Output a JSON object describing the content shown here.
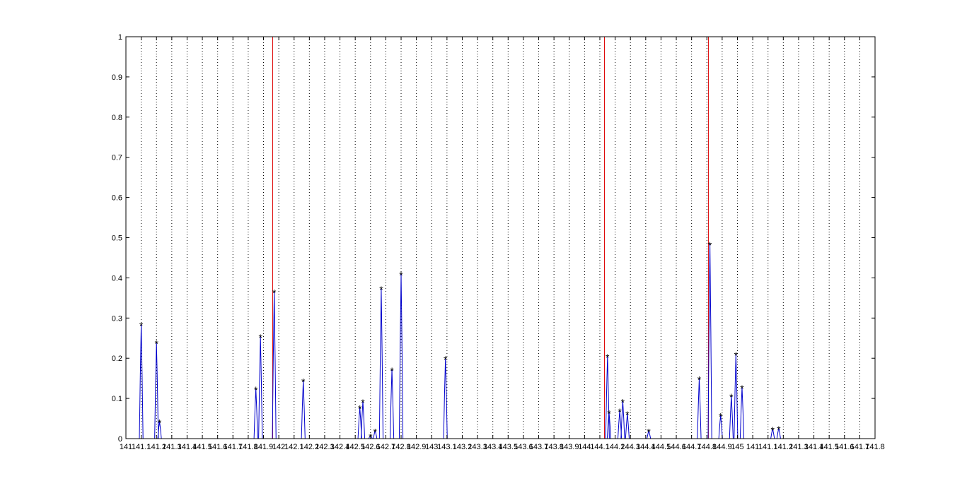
{
  "chart_data": {
    "type": "line",
    "title": "",
    "xlabel": "",
    "ylabel": "",
    "ylim": [
      0,
      1
    ],
    "y_ticks": [
      "0",
      "0.1",
      "0.2",
      "0.3",
      "0.4",
      "0.5",
      "0.6",
      "0.7",
      "0.8",
      "0.9",
      "1"
    ],
    "x_ticks": [
      "141",
      "141.1",
      "141.2",
      "141.3",
      "141.4",
      "141.5",
      "141.6",
      "141.7",
      "141.8",
      "141.9",
      "142",
      "142.1",
      "142.2",
      "142.3",
      "142.4",
      "142.5",
      "142.6",
      "142.7",
      "142.8",
      "142.9",
      "143",
      "143.1",
      "143.2",
      "143.3",
      "143.4",
      "143.5",
      "143.6",
      "143.7",
      "143.8",
      "143.9",
      "144",
      "144.1",
      "144.2",
      "144.3",
      "144.4",
      "144.5",
      "144.6",
      "144.7",
      "144.8",
      "144.9",
      "145",
      "141",
      "141.1",
      "141.2",
      "141.3",
      "141.4",
      "141.5",
      "141.6",
      "141.7",
      "141.8"
    ],
    "grid": "vertical dotted",
    "colors": {
      "signal": "#0000cc",
      "markers": "#000000",
      "marker_lines": "#dd0000",
      "grid": "#000000",
      "axes": "#000000"
    },
    "marker_lines": [
      141.96,
      144.13,
      144.81
    ],
    "series": [
      {
        "peaks": [
          {
            "x": 141.1,
            "y": 0.285
          },
          {
            "x": 141.2,
            "y": 0.24
          },
          {
            "x": 141.22,
            "y": 0.043
          },
          {
            "x": 141.85,
            "y": 0.125
          },
          {
            "x": 141.88,
            "y": 0.255
          },
          {
            "x": 141.97,
            "y": 0.366
          },
          {
            "x": 142.16,
            "y": 0.145
          },
          {
            "x": 142.53,
            "y": 0.078
          },
          {
            "x": 142.55,
            "y": 0.093
          },
          {
            "x": 142.6,
            "y": 0.008
          },
          {
            "x": 142.63,
            "y": 0.02
          },
          {
            "x": 142.67,
            "y": 0.374
          },
          {
            "x": 142.74,
            "y": 0.172
          },
          {
            "x": 142.8,
            "y": 0.41
          },
          {
            "x": 143.09,
            "y": 0.2
          },
          {
            "x": 144.15,
            "y": 0.206
          },
          {
            "x": 144.16,
            "y": 0.066
          },
          {
            "x": 144.23,
            "y": 0.07
          },
          {
            "x": 144.25,
            "y": 0.094
          },
          {
            "x": 144.28,
            "y": 0.063
          },
          {
            "x": 144.42,
            "y": 0.02
          },
          {
            "x": 144.75,
            "y": 0.15
          },
          {
            "x": 144.82,
            "y": 0.485
          },
          {
            "x": 144.89,
            "y": 0.059
          },
          {
            "x": 144.96,
            "y": 0.107
          },
          {
            "x": 144.99,
            "y": 0.211
          },
          {
            "x": 145.03,
            "y": 0.128
          },
          {
            "x": 145.23,
            "y": 0.025
          },
          {
            "x": 145.27,
            "y": 0.026
          }
        ]
      }
    ]
  }
}
